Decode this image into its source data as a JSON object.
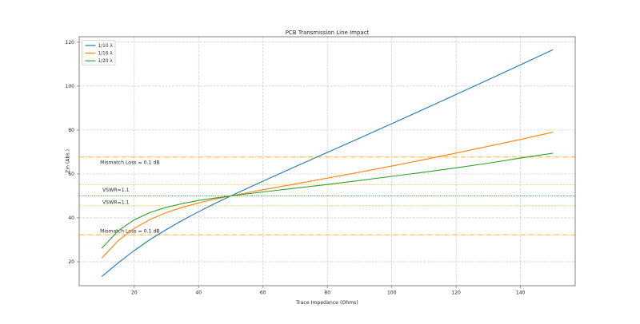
{
  "figure": {
    "background": "#ffffff"
  },
  "chart_data": {
    "type": "line",
    "title": "PCB Transmission Line Impact",
    "xlabel": "Trace Impedance (Ohms)",
    "ylabel": "Zin (Abs.)",
    "xlim": [
      2.9,
      157.0
    ],
    "ylim": [
      9.1,
      122.5
    ],
    "x_ticks": [
      20,
      40,
      60,
      80,
      100,
      120,
      140
    ],
    "y_ticks": [
      20,
      40,
      60,
      80,
      100,
      120
    ],
    "grid": true,
    "grid_style": "dashed",
    "legend_position": "upper-left",
    "x": [
      10,
      15,
      20,
      25,
      30,
      35,
      40,
      45,
      50,
      60,
      70,
      80,
      90,
      100,
      110,
      120,
      130,
      140,
      150
    ],
    "series": [
      {
        "name": "1/10 λ",
        "color": "#1f77b4",
        "values": [
          13.4,
          19.5,
          25.1,
          30.2,
          34.7,
          38.9,
          42.8,
          46.5,
          50.0,
          56.7,
          63.3,
          69.8,
          76.3,
          82.9,
          89.5,
          96.2,
          102.9,
          109.7,
          116.5
        ]
      },
      {
        "name": "1/16 λ",
        "color": "#ff7f0e",
        "values": [
          21.8,
          29.6,
          35.2,
          39.3,
          42.4,
          44.8,
          46.8,
          48.5,
          50.0,
          52.8,
          55.4,
          58.1,
          60.8,
          63.6,
          66.5,
          69.5,
          72.6,
          75.7,
          79.0
        ]
      },
      {
        "name": "1/20 λ",
        "color": "#2ca02c",
        "values": [
          26.3,
          34.1,
          39.1,
          42.5,
          44.8,
          46.5,
          47.9,
          49.0,
          50.0,
          51.8,
          53.5,
          55.2,
          57.0,
          58.9,
          60.8,
          62.8,
          64.9,
          67.2,
          69.4
        ]
      }
    ],
    "reference_lines": [
      {
        "label": "Mismatch Loss = 0.1 dB",
        "y": 67.7,
        "color": "#ffa500",
        "style": "dashdot",
        "label_side": "below",
        "label_x": 9.4
      },
      {
        "label": "VSWR=1.1",
        "y": 55.0,
        "color": "#ffa500",
        "style": "dotted",
        "label_side": "below",
        "label_x": 10.1
      },
      {
        "label": "",
        "y": 50.0,
        "color": "#008000",
        "style": "dotted",
        "label_side": "none",
        "label_x": 10.1
      },
      {
        "label": "VSWR=1.1",
        "y": 45.5,
        "color": "#ffa500",
        "style": "dotted",
        "label_side": "above",
        "label_x": 10.1
      },
      {
        "label": "Mismatch Loss = 0.1 dB",
        "y": 32.3,
        "color": "#ffa500",
        "style": "dashdot",
        "label_side": "above",
        "label_x": 9.4
      }
    ],
    "colors": {
      "grid": "#c9c9c9",
      "spine": "#808080",
      "tick_text": "#3c3c3c",
      "legend_border": "#cccccc"
    }
  }
}
